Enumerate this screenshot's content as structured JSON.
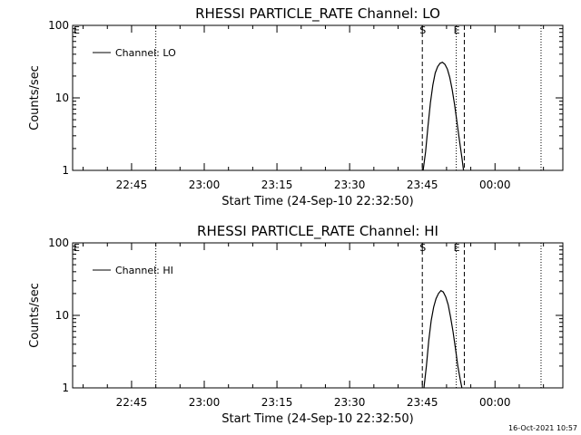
{
  "footer": {
    "timestamp": "16-Oct-2021 10:57"
  },
  "chart_data": [
    {
      "type": "line",
      "title": "RHESSI PARTICLE_RATE Channel: LO",
      "xlabel": "Start Time (24-Sep-10 22:32:50)",
      "ylabel": "Counts/sec",
      "yscale": "log",
      "ylim": [
        1,
        100
      ],
      "xlim": [
        "22:32:50",
        "00:14:00"
      ],
      "ytick_labels": [
        "1",
        "10",
        "100"
      ],
      "xtick_labels": [
        "22:45",
        "23:00",
        "23:15",
        "23:30",
        "23:45",
        "00:00"
      ],
      "legend": {
        "position": "top-left",
        "entries": [
          "Channel: LO"
        ]
      },
      "markers": [
        {
          "label": "E",
          "time": "22:32:50",
          "style": "solid"
        },
        {
          "label": "",
          "time": "22:50:00",
          "style": "dotted"
        },
        {
          "label": "S",
          "time": "23:45:00",
          "style": "dashed"
        },
        {
          "label": "E",
          "time": "23:52:00",
          "style": "dotted"
        },
        {
          "label": "",
          "time": "23:53:40",
          "style": "dashed"
        },
        {
          "label": "",
          "time": "00:09:30",
          "style": "dotted"
        }
      ],
      "series": [
        {
          "x": [
            "23:45:10",
            "23:45:40",
            "23:46:10",
            "23:46:40",
            "23:47:10",
            "23:47:40",
            "23:48:10",
            "23:48:40",
            "23:49:10",
            "23:49:40",
            "23:50:10",
            "23:50:40",
            "23:51:10",
            "23:51:40",
            "23:52:10",
            "23:52:40",
            "23:53:10",
            "23:53:30"
          ],
          "y": [
            1.0,
            1.8,
            4.0,
            8.5,
            15,
            22,
            27,
            30,
            31,
            29,
            25,
            19,
            13,
            8,
            4.5,
            2.6,
            1.5,
            1.0
          ]
        }
      ]
    },
    {
      "type": "line",
      "title": "RHESSI PARTICLE_RATE Channel: HI",
      "xlabel": "Start Time (24-Sep-10 22:32:50)",
      "ylabel": "Counts/sec",
      "yscale": "log",
      "ylim": [
        1,
        100
      ],
      "xlim": [
        "22:32:50",
        "00:14:00"
      ],
      "ytick_labels": [
        "1",
        "10",
        "100"
      ],
      "xtick_labels": [
        "22:45",
        "23:00",
        "23:15",
        "23:30",
        "23:45",
        "00:00"
      ],
      "legend": {
        "position": "top-left",
        "entries": [
          "Channel: HI"
        ]
      },
      "markers": [
        {
          "label": "E",
          "time": "22:32:50",
          "style": "solid"
        },
        {
          "label": "",
          "time": "22:50:00",
          "style": "dotted"
        },
        {
          "label": "S",
          "time": "23:45:00",
          "style": "dashed"
        },
        {
          "label": "E",
          "time": "23:52:00",
          "style": "dotted"
        },
        {
          "label": "",
          "time": "23:53:40",
          "style": "dashed"
        },
        {
          "label": "",
          "time": "00:09:30",
          "style": "dotted"
        }
      ],
      "series": [
        {
          "x": [
            "23:45:20",
            "23:45:50",
            "23:46:20",
            "23:46:50",
            "23:47:20",
            "23:47:50",
            "23:48:20",
            "23:48:50",
            "23:49:20",
            "23:49:50",
            "23:50:20",
            "23:50:50",
            "23:51:20",
            "23:51:50",
            "23:52:20",
            "23:52:50",
            "23:53:10"
          ],
          "y": [
            1.0,
            2.0,
            4.5,
            8.5,
            13,
            17,
            20,
            22,
            21,
            18,
            14,
            9.5,
            6,
            3.5,
            2.0,
            1.3,
            1.0
          ]
        }
      ]
    }
  ]
}
